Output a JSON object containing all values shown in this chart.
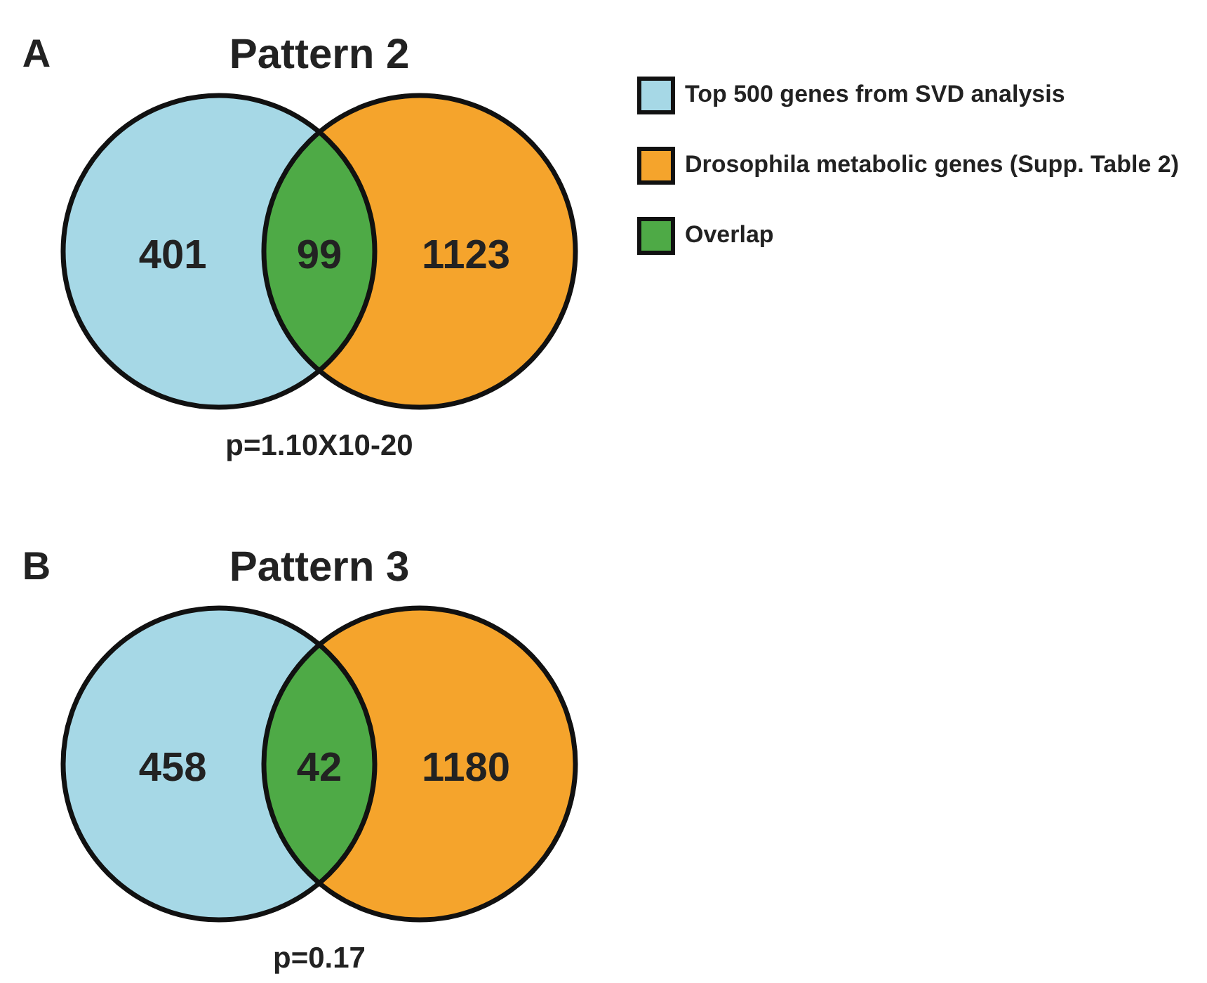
{
  "chart_data": {
    "type": "other",
    "categories": [
      "Pattern 2",
      "Pattern 3"
    ],
    "legend": "top right",
    "data_labels": true,
    "series": [
      {
        "name": "Top 500 genes from SVD analysis",
        "color": "#a6d8e6",
        "values": [
          401,
          458
        ]
      },
      {
        "name": "Drosophila metabolic genes (Supp. Table 2)",
        "color": "#f5a42c",
        "values": [
          1123,
          1180
        ]
      },
      {
        "name": "Overlap",
        "color": "#4eaa46",
        "values": [
          99,
          42
        ]
      }
    ],
    "annotations": [
      "A",
      "p=1.10X10-20",
      "B",
      "p=0.17"
    ]
  }
}
